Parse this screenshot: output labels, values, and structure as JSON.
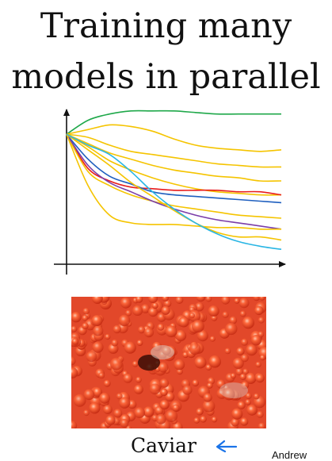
{
  "title_line1": "Training many",
  "title_line2": "models in parallel",
  "caption": "Caviar",
  "credit": "Andrew",
  "chart_data": {
    "type": "line",
    "title": "",
    "xlabel": "",
    "ylabel": "",
    "x": [
      0,
      1,
      2,
      3,
      4,
      5,
      6,
      7,
      8,
      9,
      10
    ],
    "ylim": [
      0,
      10
    ],
    "grid": false,
    "legend": "none",
    "series": [
      {
        "color": "#1fa84a",
        "values": [
          8.0,
          8.9,
          9.3,
          9.5,
          9.5,
          9.5,
          9.4,
          9.3,
          9.3,
          9.3,
          9.3
        ]
      },
      {
        "color": "#f5c400",
        "values": [
          8.0,
          8.3,
          8.6,
          8.5,
          8.2,
          7.7,
          7.3,
          7.1,
          7.0,
          6.9,
          7.0
        ]
      },
      {
        "color": "#f5c400",
        "values": [
          8.0,
          7.8,
          7.3,
          6.9,
          6.7,
          6.5,
          6.3,
          6.1,
          6.0,
          5.9,
          5.9
        ]
      },
      {
        "color": "#f5c400",
        "values": [
          8.0,
          7.4,
          6.8,
          6.4,
          6.0,
          5.7,
          5.5,
          5.3,
          5.2,
          5.0,
          5.0
        ]
      },
      {
        "color": "#f5c400",
        "values": [
          8.0,
          7.2,
          6.3,
          5.7,
          5.2,
          4.8,
          4.5,
          4.3,
          4.2,
          4.1,
          4.1
        ]
      },
      {
        "color": "#e81c1c",
        "values": [
          8.0,
          5.8,
          5.0,
          4.6,
          4.5,
          4.4,
          4.4,
          4.4,
          4.3,
          4.3,
          4.1
        ]
      },
      {
        "color": "#1f5fbf",
        "values": [
          8.0,
          6.4,
          5.3,
          4.8,
          4.3,
          4.1,
          4.0,
          3.9,
          3.8,
          3.7,
          3.6
        ]
      },
      {
        "color": "#f5c400",
        "values": [
          8.0,
          5.6,
          4.7,
          4.1,
          3.7,
          3.4,
          3.2,
          3.0,
          2.8,
          2.7,
          2.6
        ]
      },
      {
        "color": "#7b3ea8",
        "values": [
          8.0,
          6.0,
          4.9,
          4.3,
          3.7,
          3.2,
          2.8,
          2.5,
          2.3,
          2.1,
          1.9
        ]
      },
      {
        "color": "#f5c400",
        "values": [
          8.0,
          4.7,
          2.8,
          2.3,
          2.2,
          2.2,
          2.1,
          2.0,
          2.0,
          1.9,
          1.9
        ]
      },
      {
        "color": "#f5c400",
        "values": [
          8.0,
          7.0,
          6.0,
          4.9,
          4.0,
          3.1,
          2.3,
          1.7,
          1.4,
          1.4,
          1.2
        ]
      },
      {
        "color": "#2ab6e4",
        "values": [
          8.0,
          7.3,
          6.7,
          5.6,
          4.3,
          3.2,
          2.3,
          1.6,
          1.1,
          0.8,
          0.6
        ]
      }
    ]
  }
}
